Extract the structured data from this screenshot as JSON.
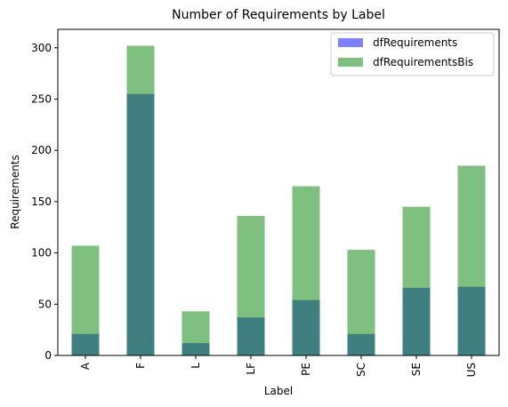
{
  "chart_data": {
    "type": "bar",
    "title": "Number of Requirements by Label",
    "xlabel": "Label",
    "ylabel": "Requirements",
    "categories": [
      "A",
      "F",
      "L",
      "LF",
      "PE",
      "SC",
      "SE",
      "US"
    ],
    "series": [
      {
        "name": "dfRequirements",
        "values": [
          21,
          255,
          12,
          37,
          54,
          21,
          66,
          67
        ],
        "color": "#0000ff",
        "alpha": 0.5
      },
      {
        "name": "dfRequirementsBis",
        "values": [
          107,
          302,
          43,
          136,
          165,
          103,
          145,
          185
        ],
        "color": "#008000",
        "alpha": 0.5
      }
    ],
    "ylim": [
      0,
      318
    ],
    "yticks": [
      0,
      50,
      100,
      150,
      200,
      250,
      300
    ],
    "grid": false,
    "legend_position": "top-right"
  }
}
